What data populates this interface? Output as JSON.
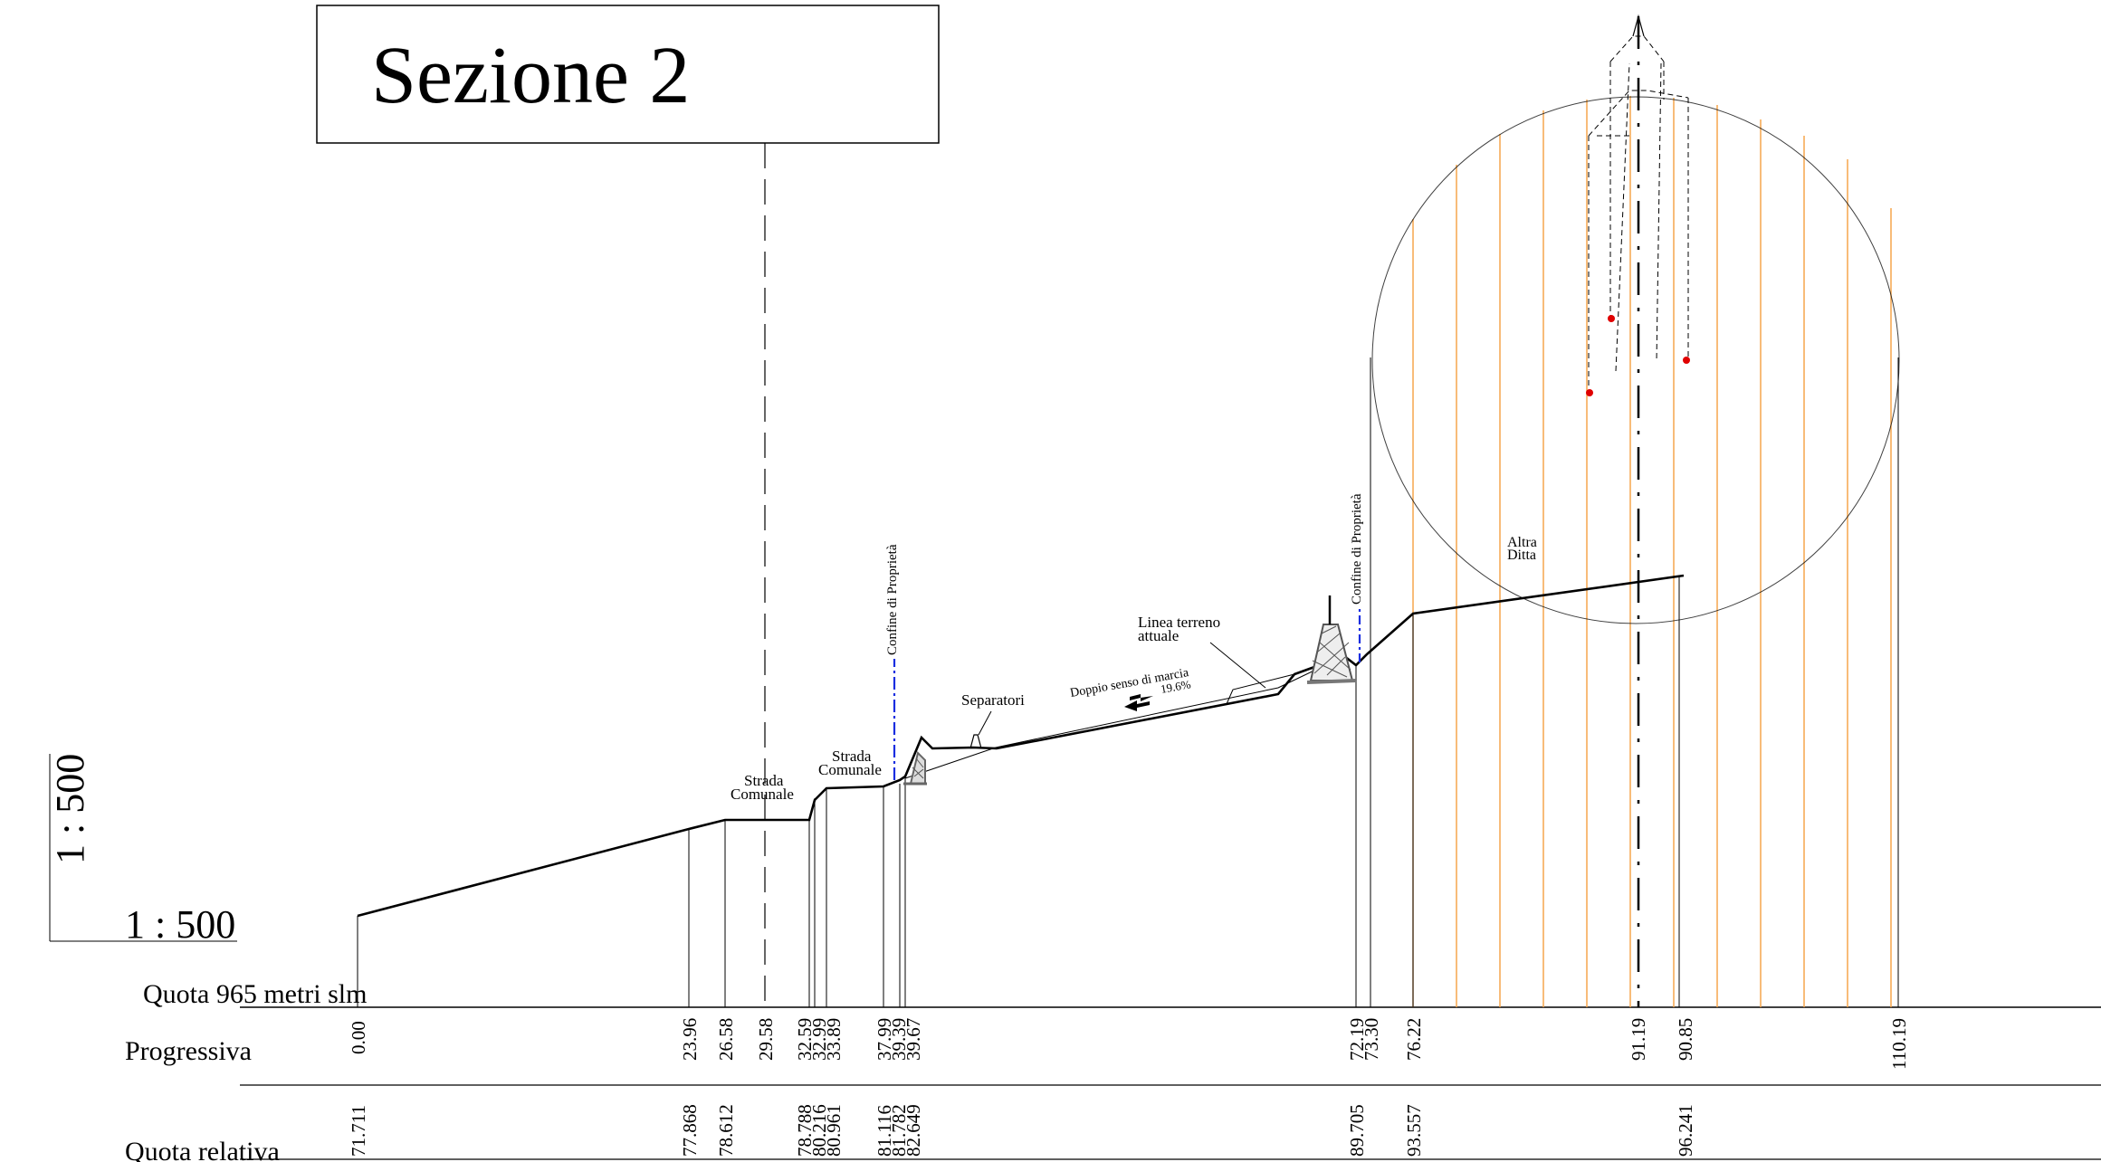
{
  "title": "Sezione 2",
  "scale": {
    "vertical": "1 : 500",
    "horizontal": "1 : 500"
  },
  "datum": "Quota 965 metri slm",
  "row_labels": {
    "progressiva": "Progressiva",
    "quota": "Quota relativa"
  },
  "labels": {
    "strada1": [
      "Strada",
      "Comunale"
    ],
    "strada2": [
      "Strada",
      "Comunale"
    ],
    "confine1": "Confine di Proprietà",
    "confine2": "Confine di Proprietà",
    "separatori": "Separatori",
    "doppio": "Doppio senso di marcia",
    "slope": "19.6%",
    "linea": [
      "Linea terreno",
      "attuale"
    ],
    "altra": [
      "Altra",
      "Ditta"
    ]
  },
  "progressive": [
    {
      "value": "0.00",
      "color": "#000000"
    },
    {
      "value": "23.96",
      "color": "#000000"
    },
    {
      "value": "26.58",
      "color": "#000000"
    },
    {
      "value": "29.58",
      "color": "#e00000"
    },
    {
      "value": "32.59",
      "color": "#000000"
    },
    {
      "value": "32.99",
      "color": "#000000"
    },
    {
      "value": "33.89",
      "color": "#000000"
    },
    {
      "value": "37.99",
      "color": "#000000"
    },
    {
      "value": "39.39",
      "color": "#000000"
    },
    {
      "value": "39.67",
      "color": "#000000"
    },
    {
      "value": "72.19",
      "color": "#000000"
    },
    {
      "value": "73.30",
      "color": "#000000"
    },
    {
      "value": "76.22",
      "color": "#000000"
    },
    {
      "value": "91.19",
      "color": "#000000"
    },
    {
      "value": "90.85",
      "color": "#000000"
    },
    {
      "value": "110.19",
      "color": "#000000"
    }
  ],
  "quote": [
    "71.711",
    "77.868",
    "78.612",
    "78.788",
    "80.216",
    "80.961",
    "81.116",
    "81.782",
    "82.649",
    "89.705",
    "93.557",
    "96.241"
  ],
  "colors": {
    "hatch": "#f5a040",
    "confine": "#1a2ee0",
    "marker": "#e00000"
  }
}
